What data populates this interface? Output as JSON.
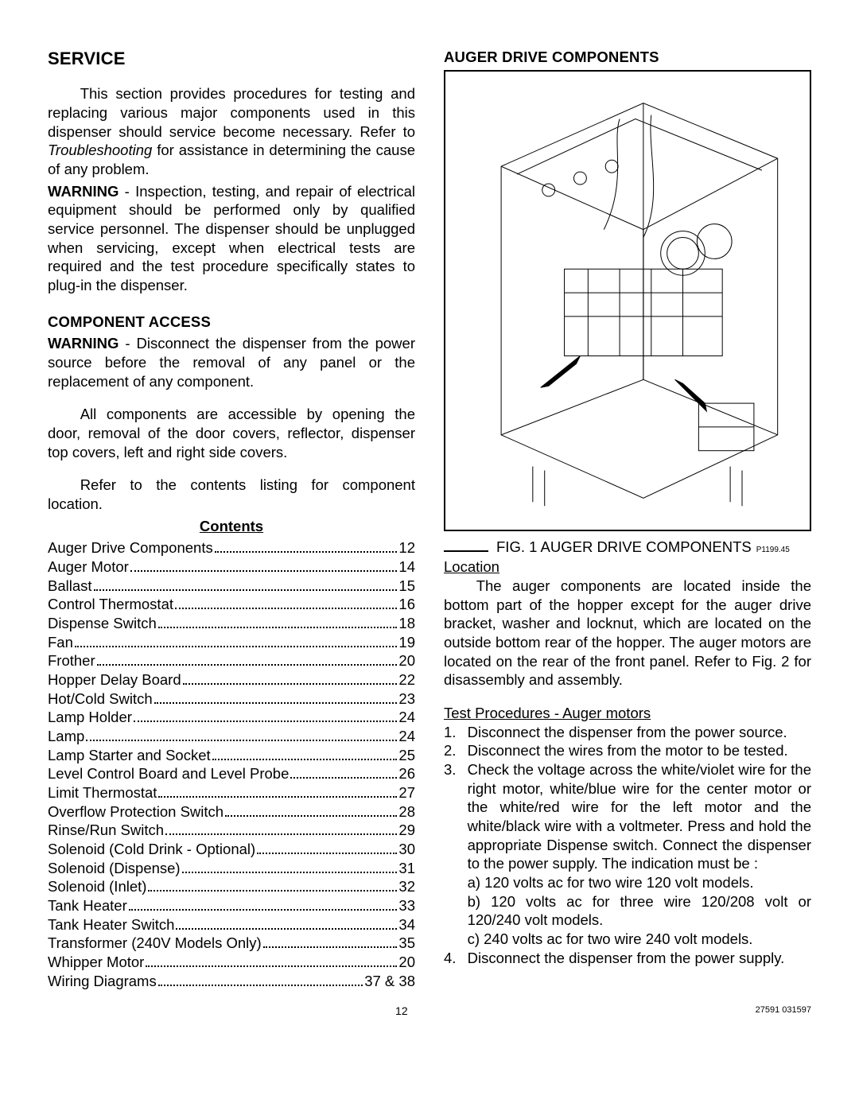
{
  "left": {
    "section_title": "SERVICE",
    "intro_indent": "This section provides procedures for testing and replacing various major components used in this dispenser should service become necessary.  Refer to ",
    "intro_italic": "Troubleshooting",
    "intro_tail": " for assistance in determining the cause of any problem.",
    "warning1_label": "WARNING",
    "warning1_text": " - Inspection, testing, and repair of electrical equipment should be performed only by qualified service personnel.  The dispenser should be unplugged when servicing, except when electrical tests are required and the test procedure specifically states to plug-in the dispenser.",
    "component_access_title": "COMPONENT ACCESS",
    "warning2_label": "WARNING",
    "warning2_text": " - Disconnect the dispenser  from the power source before the removal of any panel or the replacement of any component.",
    "access_para": "All components are accessible by opening  the door, removal of the door covers, reflector, dispenser top covers, left and right side covers.",
    "refer_para": "Refer to the contents listing for component location.",
    "contents_title": "Contents",
    "toc": [
      {
        "label": "Auger Drive Components",
        "page": "12"
      },
      {
        "label": "Auger Motor",
        "page": "14"
      },
      {
        "label": "Ballast",
        "page": "15"
      },
      {
        "label": "Control Thermostat",
        "page": "16"
      },
      {
        "label": "Dispense Switch",
        "page": "18"
      },
      {
        "label": "Fan",
        "page": "19"
      },
      {
        "label": "Frother",
        "page": " 20"
      },
      {
        "label": "Hopper Delay Board",
        "page": "22"
      },
      {
        "label": "Hot/Cold Switch",
        "page": "23"
      },
      {
        "label": "Lamp Holder",
        "page": "24"
      },
      {
        "label": "Lamp",
        "page": "24"
      },
      {
        "label": "Lamp Starter and Socket",
        "page": "25"
      },
      {
        "label": "Level Control Board and Level Probe",
        "page": "26"
      },
      {
        "label": "Limit Thermostat",
        "page": "27"
      },
      {
        "label": "Overflow Protection Switch",
        "page": "28"
      },
      {
        "label": "Rinse/Run Switch",
        "page": "29"
      },
      {
        "label": "Solenoid (Cold Drink - Optional)",
        "page": "30"
      },
      {
        "label": "Solenoid (Dispense)",
        "page": "31"
      },
      {
        "label": "Solenoid (Inlet)",
        "page": "32"
      },
      {
        "label": "Tank Heater",
        "page": "33"
      },
      {
        "label": "Tank Heater Switch",
        "page": "34"
      },
      {
        "label": "Transformer (240V Models Only)",
        "page": "35"
      },
      {
        "label": "Whipper Motor",
        "page": "20"
      },
      {
        "label": "Wiring Diagrams",
        "page": " 37 & 38"
      }
    ]
  },
  "right": {
    "section_title": "AUGER DRIVE COMPONENTS",
    "fig_caption": "FIG. 1  AUGER DRIVE COMPONENTS",
    "fig_ref": "P1199.45",
    "location_label": "Location",
    "location_para": "The auger components are located inside the bottom part of the hopper except for the auger drive bracket, washer and locknut, which are located on the outside bottom rear of the hopper. The auger motors are located on the rear of the front panel. Refer to Fig. 2 for disassembly and assembly.",
    "test_label": "Test Procedures - Auger motors",
    "steps": [
      "Disconnect the dispenser from the power source.",
      "Disconnect the wires from the motor to be tested.",
      "Check the voltage across the white/violet wire for the right motor, white/blue wire for the center motor or the white/red wire for the left motor and the white/black wire with a voltmeter. Press and hold the appropriate Dispense switch. Connect the dispenser to the power supply. The indication must be :",
      "Disconnect the dispenser from the power supply."
    ],
    "sub_a": "a) 120 volts ac for two wire 120 volt models.",
    "sub_b": "b) 120 volts ac for three wire 120/208 volt or 120/240 volt models.",
    "sub_c": "c) 240 volts ac for two wire 240 volt models."
  },
  "footer": {
    "page": "12",
    "doc": "27591 031597"
  },
  "figure_style": {
    "stroke": "#000000",
    "stroke_width": 1,
    "fill": "none"
  }
}
